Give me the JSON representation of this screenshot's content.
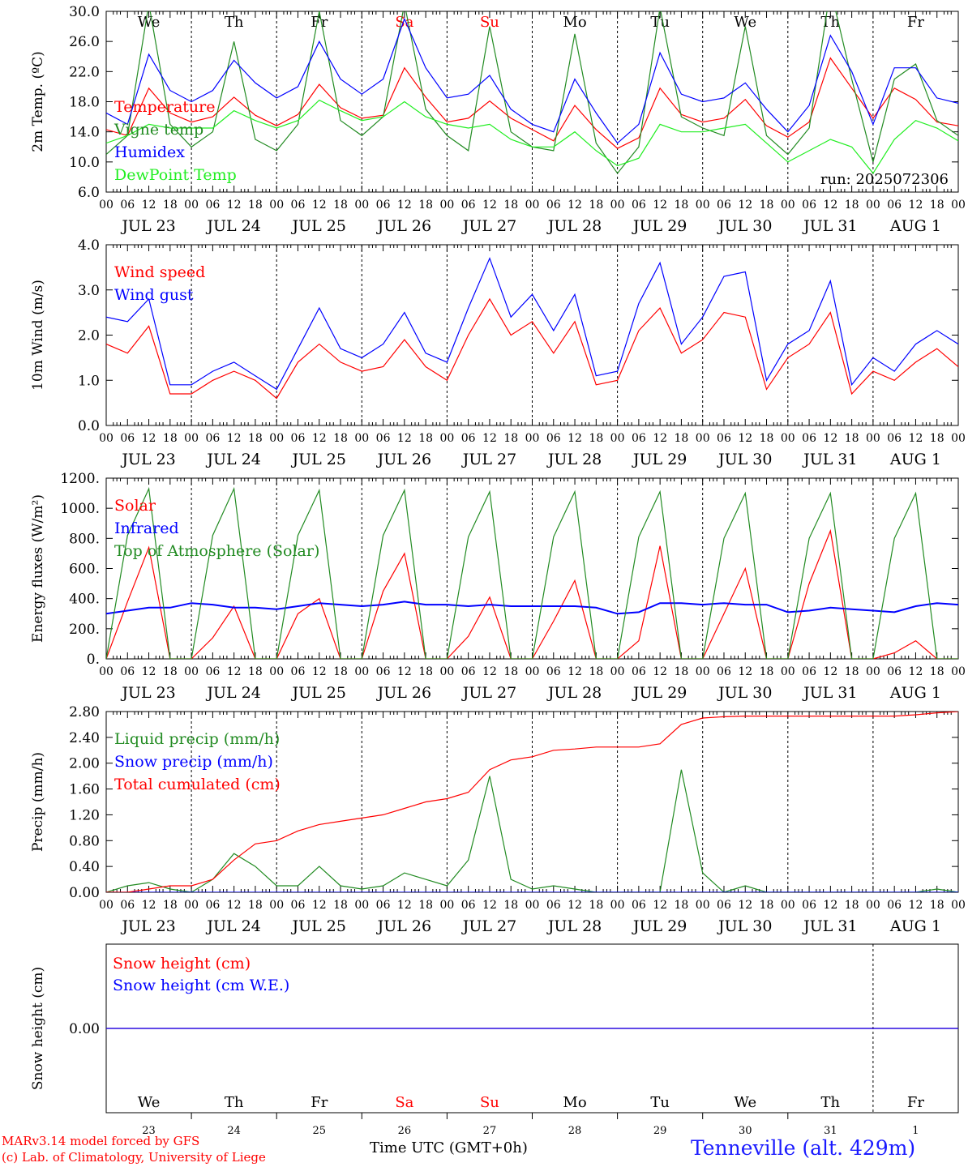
{
  "colors": {
    "red": "#ff0000",
    "blue": "#0000ff",
    "green": "#228b22",
    "lightgreen": "#22ee22",
    "black": "#000000"
  },
  "days": {
    "weekday_labels": [
      "We",
      "Th",
      "Fr",
      "Sa",
      "Su",
      "Mo",
      "Tu",
      "We",
      "Th",
      "Fr"
    ],
    "weekday_colors": [
      "black",
      "black",
      "black",
      "red",
      "red",
      "black",
      "black",
      "black",
      "black",
      "black"
    ],
    "date_labels": [
      "JUL 23",
      "JUL 24",
      "JUL 25",
      "JUL 26",
      "JUL 27",
      "JUL 28",
      "JUL 29",
      "JUL 30",
      "JUL 31",
      "AUG  1"
    ],
    "day_numbers": [
      "23",
      "24",
      "25",
      "26",
      "27",
      "28",
      "29",
      "30",
      "31",
      "1"
    ],
    "hour_labels": [
      "00",
      "06",
      "12",
      "18"
    ],
    "final_hour_label": "00"
  },
  "footer": {
    "credit_line1": "MARv3.14 model forced by GFS",
    "credit_line2": "(c) Lab. of Climatology, University of Liege",
    "xlabel": "Time UTC (GMT+0h)",
    "station": "Tenneville (alt. 429m)"
  },
  "chart_data": [
    {
      "id": "temperature",
      "type": "line",
      "ylabel": "2m Temp. (ºC)",
      "ylim": [
        6,
        30
      ],
      "yticks": [
        "6.0",
        "10.0",
        "14.0",
        "18.0",
        "22.0",
        "26.0",
        "30.0"
      ],
      "run_label": "run: 2025072306",
      "x_unit": "hours since JUL 23 00 UTC, 6-hourly",
      "series": [
        {
          "name": "Temperature",
          "color": "red",
          "values": [
            14.3,
            13.5,
            19.8,
            16.5,
            15.3,
            16.0,
            18.6,
            16.2,
            14.8,
            16.3,
            20.3,
            17.2,
            15.8,
            16.2,
            22.5,
            18.6,
            15.3,
            15.8,
            18.1,
            15.8,
            14.3,
            12.8,
            17.5,
            14.3,
            11.8,
            13.2,
            19.8,
            16.3,
            15.3,
            15.8,
            18.3,
            14.8,
            13.3,
            15.3,
            23.8,
            19.8,
            15.8,
            19.8,
            18.3,
            15.3,
            14.8
          ]
        },
        {
          "name": "Vigne temp",
          "color": "green",
          "values": [
            11.0,
            13.5,
            31.0,
            15.0,
            12.0,
            14.0,
            26.0,
            13.0,
            11.5,
            15.0,
            30.0,
            15.5,
            13.5,
            16.0,
            31.0,
            17.0,
            13.5,
            11.5,
            28.0,
            14.0,
            12.0,
            11.5,
            27.0,
            12.5,
            8.5,
            12.0,
            30.5,
            16.0,
            14.5,
            13.5,
            28.0,
            13.5,
            11.0,
            14.5,
            33.0,
            21.0,
            10.0,
            21.0,
            23.0,
            15.5,
            13.5
          ]
        },
        {
          "name": "Humidex",
          "color": "blue",
          "values": [
            16.5,
            15.0,
            24.3,
            19.5,
            18.0,
            19.5,
            23.5,
            20.5,
            18.5,
            20.0,
            26.0,
            21.0,
            19.0,
            21.0,
            29.0,
            22.5,
            18.5,
            19.0,
            21.5,
            17.0,
            15.0,
            14.0,
            21.0,
            16.5,
            12.5,
            15.0,
            24.5,
            19.0,
            18.0,
            18.5,
            20.5,
            17.0,
            14.0,
            17.5,
            26.8,
            22.0,
            15.0,
            22.5,
            22.5,
            18.5,
            17.8
          ]
        },
        {
          "name": "DewPoint Temp",
          "color": "lightgreen",
          "values": [
            12.5,
            13.5,
            15.0,
            14.5,
            14.5,
            14.5,
            16.8,
            15.5,
            14.5,
            15.5,
            18.2,
            16.8,
            15.5,
            16.0,
            18.0,
            16.0,
            15.0,
            14.5,
            15.0,
            13.0,
            12.0,
            12.0,
            14.0,
            11.5,
            9.5,
            10.5,
            15.0,
            14.0,
            14.0,
            14.5,
            15.0,
            12.5,
            10.0,
            11.5,
            13.0,
            12.0,
            8.5,
            13.0,
            15.5,
            14.5,
            12.8
          ]
        }
      ]
    },
    {
      "id": "wind",
      "type": "line",
      "ylabel": "10m Wind (m/s)",
      "ylim": [
        0,
        4
      ],
      "yticks": [
        "0.0",
        "1.0",
        "2.0",
        "3.0",
        "4.0"
      ],
      "x_unit": "hours since JUL 23 00 UTC, 6-hourly",
      "series": [
        {
          "name": "Wind speed",
          "color": "red",
          "values": [
            1.8,
            1.6,
            2.2,
            0.7,
            0.7,
            1.0,
            1.2,
            1.0,
            0.6,
            1.4,
            1.8,
            1.4,
            1.2,
            1.3,
            1.9,
            1.3,
            1.0,
            2.0,
            2.8,
            2.0,
            2.3,
            1.6,
            2.3,
            0.9,
            1.0,
            2.1,
            2.6,
            1.6,
            1.9,
            2.5,
            2.4,
            0.8,
            1.5,
            1.8,
            2.5,
            0.7,
            1.2,
            1.0,
            1.4,
            1.7,
            1.3
          ]
        },
        {
          "name": "Wind gust",
          "color": "blue",
          "values": [
            2.4,
            2.3,
            2.8,
            0.9,
            0.9,
            1.2,
            1.4,
            1.1,
            0.8,
            1.7,
            2.6,
            1.7,
            1.5,
            1.8,
            2.5,
            1.6,
            1.4,
            2.6,
            3.7,
            2.4,
            2.9,
            2.1,
            2.9,
            1.1,
            1.2,
            2.7,
            3.6,
            1.8,
            2.4,
            3.3,
            3.4,
            1.0,
            1.8,
            2.1,
            3.2,
            0.9,
            1.5,
            1.2,
            1.8,
            2.1,
            1.8
          ]
        }
      ]
    },
    {
      "id": "fluxes",
      "type": "line",
      "ylabel": "Energy fluxes (W/m²)",
      "ylim": [
        0,
        1200
      ],
      "yticks": [
        "0.",
        "200.",
        "400.",
        "600.",
        "800.",
        "1000.",
        "1200."
      ],
      "x_unit": "hours since JUL 23 00 UTC, 6-hourly",
      "series": [
        {
          "name": "Solar",
          "color": "red",
          "values": [
            0,
            380,
            740,
            0,
            0,
            140,
            350,
            0,
            0,
            300,
            400,
            0,
            0,
            450,
            700,
            0,
            0,
            150,
            410,
            0,
            0,
            250,
            520,
            0,
            0,
            120,
            750,
            0,
            0,
            300,
            600,
            0,
            0,
            500,
            850,
            0,
            0,
            40,
            120,
            0,
            0
          ]
        },
        {
          "name": "Infrared",
          "color": "blue",
          "values": [
            300,
            320,
            340,
            340,
            370,
            360,
            340,
            340,
            330,
            350,
            370,
            360,
            350,
            360,
            380,
            360,
            360,
            350,
            360,
            350,
            350,
            350,
            350,
            340,
            300,
            310,
            370,
            370,
            360,
            370,
            360,
            360,
            310,
            320,
            340,
            330,
            320,
            310,
            350,
            370,
            360
          ]
        },
        {
          "name": "Top of Atmosphere (Solar)",
          "color": "green",
          "values": [
            0,
            820,
            1130,
            0,
            0,
            820,
            1130,
            0,
            0,
            820,
            1120,
            0,
            0,
            820,
            1120,
            0,
            0,
            810,
            1110,
            0,
            0,
            810,
            1110,
            0,
            0,
            810,
            1110,
            0,
            0,
            800,
            1100,
            0,
            0,
            800,
            1100,
            0,
            0,
            800,
            1100,
            0,
            0
          ]
        }
      ]
    },
    {
      "id": "precip",
      "type": "line",
      "ylabel": "Precip (mm/h)",
      "ylim": [
        0,
        2.8
      ],
      "yticks": [
        "0.00",
        "0.40",
        "0.80",
        "1.20",
        "1.60",
        "2.00",
        "2.40",
        "2.80"
      ],
      "x_unit": "hours since JUL 23 00 UTC, 6-hourly",
      "series": [
        {
          "name": "Liquid precip (mm/h)",
          "color": "green",
          "values": [
            0,
            0.1,
            0.15,
            0.05,
            0,
            0.2,
            0.6,
            0.4,
            0.1,
            0.1,
            0.4,
            0.1,
            0.05,
            0.1,
            0.3,
            0.2,
            0.1,
            0.5,
            1.8,
            0.2,
            0.05,
            0.1,
            0.05,
            0,
            0,
            0,
            0,
            1.9,
            0.3,
            0,
            0.1,
            0,
            0,
            0,
            0,
            0,
            0,
            0,
            0,
            0.05,
            0
          ]
        },
        {
          "name": "Snow precip (mm/h)",
          "color": "blue",
          "values": [
            0,
            0,
            0,
            0,
            0,
            0,
            0,
            0,
            0,
            0,
            0,
            0,
            0,
            0,
            0,
            0,
            0,
            0,
            0,
            0,
            0,
            0,
            0,
            0,
            0,
            0,
            0,
            0,
            0,
            0,
            0,
            0,
            0,
            0,
            0,
            0,
            0,
            0,
            0,
            0,
            0
          ]
        },
        {
          "name": "Total cumulated (cm)",
          "color": "red",
          "values": [
            0,
            0,
            0.05,
            0.1,
            0.1,
            0.2,
            0.5,
            0.75,
            0.8,
            0.95,
            1.05,
            1.1,
            1.15,
            1.2,
            1.3,
            1.4,
            1.45,
            1.55,
            1.9,
            2.05,
            2.1,
            2.2,
            2.22,
            2.25,
            2.25,
            2.25,
            2.3,
            2.6,
            2.7,
            2.72,
            2.73,
            2.73,
            2.73,
            2.73,
            2.73,
            2.73,
            2.73,
            2.73,
            2.75,
            2.78,
            2.8
          ]
        }
      ]
    },
    {
      "id": "snow",
      "type": "line",
      "ylabel": "Snow height (cm)",
      "ylim": [
        -1,
        1
      ],
      "yticks": [
        "0.00"
      ],
      "x_unit": "hours since JUL 23 00 UTC, 6-hourly",
      "series": [
        {
          "name": "Snow height (cm)",
          "color": "red",
          "values": [
            0,
            0
          ]
        },
        {
          "name": "Snow height (cm W.E.)",
          "color": "blue",
          "values": [
            0,
            0
          ]
        }
      ]
    }
  ]
}
